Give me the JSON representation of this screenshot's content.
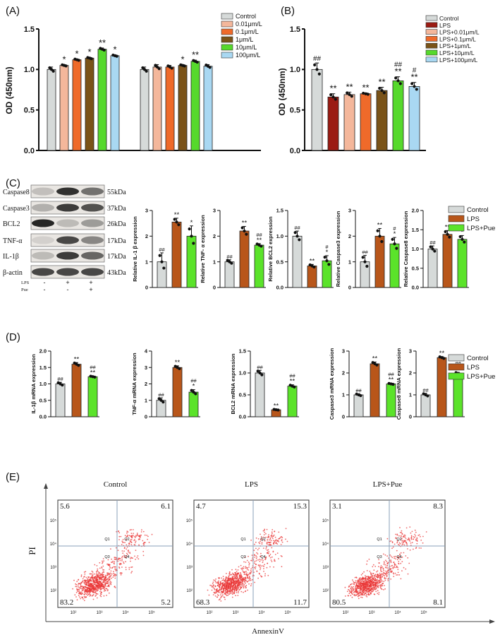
{
  "colors": {
    "control": "#d6dad9",
    "lps": "#9b1b13",
    "c001": "#f4b79b",
    "c01": "#ef6a2a",
    "c1": "#7a5318",
    "c10": "#56d92c",
    "c100": "#a9d8f2",
    "lps_d": "#b8561a",
    "pue": "#5be32a",
    "flow_dot": "#ea3535",
    "axis": "#111111"
  },
  "panels": {
    "a": "(A)",
    "b": "(B)",
    "c": "(C)",
    "d": "(D)",
    "e": "(E)"
  },
  "chart_data": [
    {
      "id": "A",
      "type": "bar",
      "ylabel": "OD (450nm)",
      "ylim": [
        0,
        1.5
      ],
      "yticks": [
        "0.0",
        "0.5",
        "1.0",
        "1.5"
      ],
      "legend": [
        "Control",
        "0.01μm/L",
        "0.1μm/L",
        "1μm/L",
        "10μm/L",
        "100μm/L"
      ],
      "groups": [
        {
          "values": [
            1.0,
            1.05,
            1.12,
            1.14,
            1.25,
            1.17
          ],
          "errors": [
            0.03,
            0.01,
            0.01,
            0.01,
            0.015,
            0.01
          ],
          "marks": [
            "",
            "*",
            "*",
            "*",
            "**",
            "*"
          ]
        },
        {
          "values": [
            1.0,
            1.03,
            1.03,
            1.05,
            1.1,
            1.04
          ],
          "errors": [
            0.03,
            0.03,
            0.02,
            0.01,
            0.015,
            0.02
          ],
          "marks": [
            "",
            "",
            "",
            "*",
            "**",
            ""
          ]
        }
      ]
    },
    {
      "id": "B",
      "type": "bar",
      "ylabel": "OD (450nm)",
      "ylim": [
        0,
        1.5
      ],
      "yticks": [
        "0.0",
        "0.5",
        "1.0",
        "1.5"
      ],
      "legend": [
        "Control",
        "LPS",
        "LPS+0.01μm/L",
        "LPS+0.1μm/L",
        "LPS+1μm/L",
        "LPS+10μm/L",
        "LPS+100μm/L"
      ],
      "values": [
        1.0,
        0.66,
        0.69,
        0.7,
        0.74,
        0.86,
        0.79
      ],
      "errors": [
        0.08,
        0.04,
        0.03,
        0.01,
        0.04,
        0.05,
        0.05
      ],
      "top_marks": [
        "##",
        "",
        "",
        "",
        "",
        "##",
        "#"
      ],
      "marks": [
        "",
        "**",
        "**",
        "**",
        "**",
        "**",
        "**"
      ]
    }
  ],
  "western": {
    "rows": [
      "Caspase8",
      "Caspase3",
      "BCL2",
      "TNF-α",
      "IL-1β",
      "β-actin"
    ],
    "kda": [
      "55kDa",
      "37kDa",
      "26kDa",
      "17kDa",
      "17kDa",
      "43kDa"
    ],
    "lps_label": "LPS",
    "pue_label": "Pue",
    "lps_signs": [
      "-",
      "+",
      "+"
    ],
    "pue_signs": [
      "-",
      "-",
      "+"
    ]
  },
  "protein_charts": [
    {
      "ylabel": "Relative IL-1 β expression",
      "yticks": [
        "0",
        "1",
        "2",
        "3"
      ],
      "ymax": 3,
      "values": [
        1.0,
        2.55,
        2.0
      ],
      "errors": [
        0.35,
        0.15,
        0.4
      ],
      "top": [
        "##",
        "",
        ""
      ],
      "mid": [
        "",
        "**",
        "*"
      ]
    },
    {
      "ylabel": "Relative TNF- α expression",
      "yticks": [
        "0",
        "1",
        "2",
        "3"
      ],
      "ymax": 3,
      "values": [
        1.0,
        2.2,
        1.65
      ],
      "errors": [
        0.08,
        0.18,
        0.06
      ],
      "top": [
        "##",
        "",
        "##"
      ],
      "mid": [
        "",
        "**",
        "**"
      ]
    },
    {
      "ylabel": "Relative BCL2 expression",
      "yticks": [
        "0.0",
        "0.5",
        "1.0",
        "1.5"
      ],
      "ymax": 1.5,
      "values": [
        1.0,
        0.42,
        0.52
      ],
      "errors": [
        0.1,
        0.03,
        0.1
      ],
      "top": [
        "##",
        "",
        "#"
      ],
      "mid": [
        "",
        "**",
        "*"
      ]
    },
    {
      "ylabel": "Relative Caspase3 expression",
      "yticks": [
        "0",
        "1",
        "2",
        "3"
      ],
      "ymax": 3,
      "values": [
        1.0,
        2.0,
        1.7
      ],
      "errors": [
        0.25,
        0.3,
        0.25
      ],
      "top": [
        "##",
        "",
        "#"
      ],
      "mid": [
        "",
        "**",
        "*"
      ]
    },
    {
      "ylabel": "Relative Caspase8 expression",
      "yticks": [
        "0.0",
        "0.5",
        "1.0",
        "1.5",
        "2.0"
      ],
      "ymax": 2,
      "values": [
        1.0,
        1.38,
        1.25
      ],
      "errors": [
        0.08,
        0.1,
        0.1
      ],
      "top": [
        "##",
        "",
        ""
      ],
      "mid": [
        "",
        "**",
        "*"
      ]
    }
  ],
  "mrna_charts": [
    {
      "ylabel": "IL-1β mRNA expression",
      "yticks": [
        "0.0",
        "0.5",
        "1.0",
        "1.5",
        "2.0"
      ],
      "ymax": 2,
      "values": [
        1.0,
        1.6,
        1.22
      ],
      "errors": [
        0.05,
        0.05,
        0.02
      ],
      "top": [
        "##",
        "",
        "##"
      ],
      "mid": [
        "",
        "**",
        "**"
      ]
    },
    {
      "ylabel": "TNF-α mRNA expression",
      "yticks": [
        "0",
        "1",
        "2",
        "3",
        "4"
      ],
      "ymax": 4,
      "values": [
        1.0,
        3.0,
        1.5
      ],
      "errors": [
        0.15,
        0.1,
        0.15
      ],
      "top": [
        "##",
        "",
        "##"
      ],
      "mid": [
        "",
        "**",
        "*"
      ]
    },
    {
      "ylabel": "BCL2 mRNA expression",
      "yticks": [
        "0.0",
        "0.5",
        "1.0",
        "1.5"
      ],
      "ymax": 1.5,
      "values": [
        1.0,
        0.16,
        0.7
      ],
      "errors": [
        0.06,
        0.01,
        0.03
      ],
      "top": [
        "##",
        "",
        "##"
      ],
      "mid": [
        "",
        "**",
        "**"
      ]
    },
    {
      "ylabel": "Caspase3 mRNA expression",
      "yticks": [
        "0",
        "1",
        "2",
        "3"
      ],
      "ymax": 3,
      "values": [
        1.0,
        2.42,
        1.5
      ],
      "errors": [
        0.05,
        0.08,
        0.03
      ],
      "top": [
        "##",
        "",
        "##"
      ],
      "mid": [
        "",
        "**",
        "**"
      ]
    },
    {
      "ylabel": "Caspase8 mRNA expression",
      "yticks": [
        "0",
        "1",
        "2",
        "3"
      ],
      "ymax": 3,
      "values": [
        1.0,
        2.7,
        1.98
      ],
      "errors": [
        0.07,
        0.05,
        0.05
      ],
      "top": [
        "##",
        "",
        "##"
      ],
      "mid": [
        "",
        "**",
        "**"
      ]
    }
  ],
  "group_legend": [
    "Control",
    "LPS",
    "LPS+Pue"
  ],
  "flow": {
    "ylabel": "PI",
    "xlabel": "AnnexinV",
    "plots": [
      {
        "title": "Control",
        "q": [
          "5.6",
          "6.1",
          "83.2",
          "5.2"
        ]
      },
      {
        "title": "LPS",
        "q": [
          "4.7",
          "15.3",
          "68.3",
          "11.7"
        ]
      },
      {
        "title": "LPS+Pue",
        "q": [
          "3.1",
          "8.3",
          "80.5",
          "8.1"
        ]
      }
    ],
    "quadrant_labels": [
      "Q1",
      "Q2",
      "Q3",
      "Q4"
    ],
    "axis_ticks": [
      "10²",
      "10³",
      "10⁴",
      "10⁵"
    ]
  }
}
